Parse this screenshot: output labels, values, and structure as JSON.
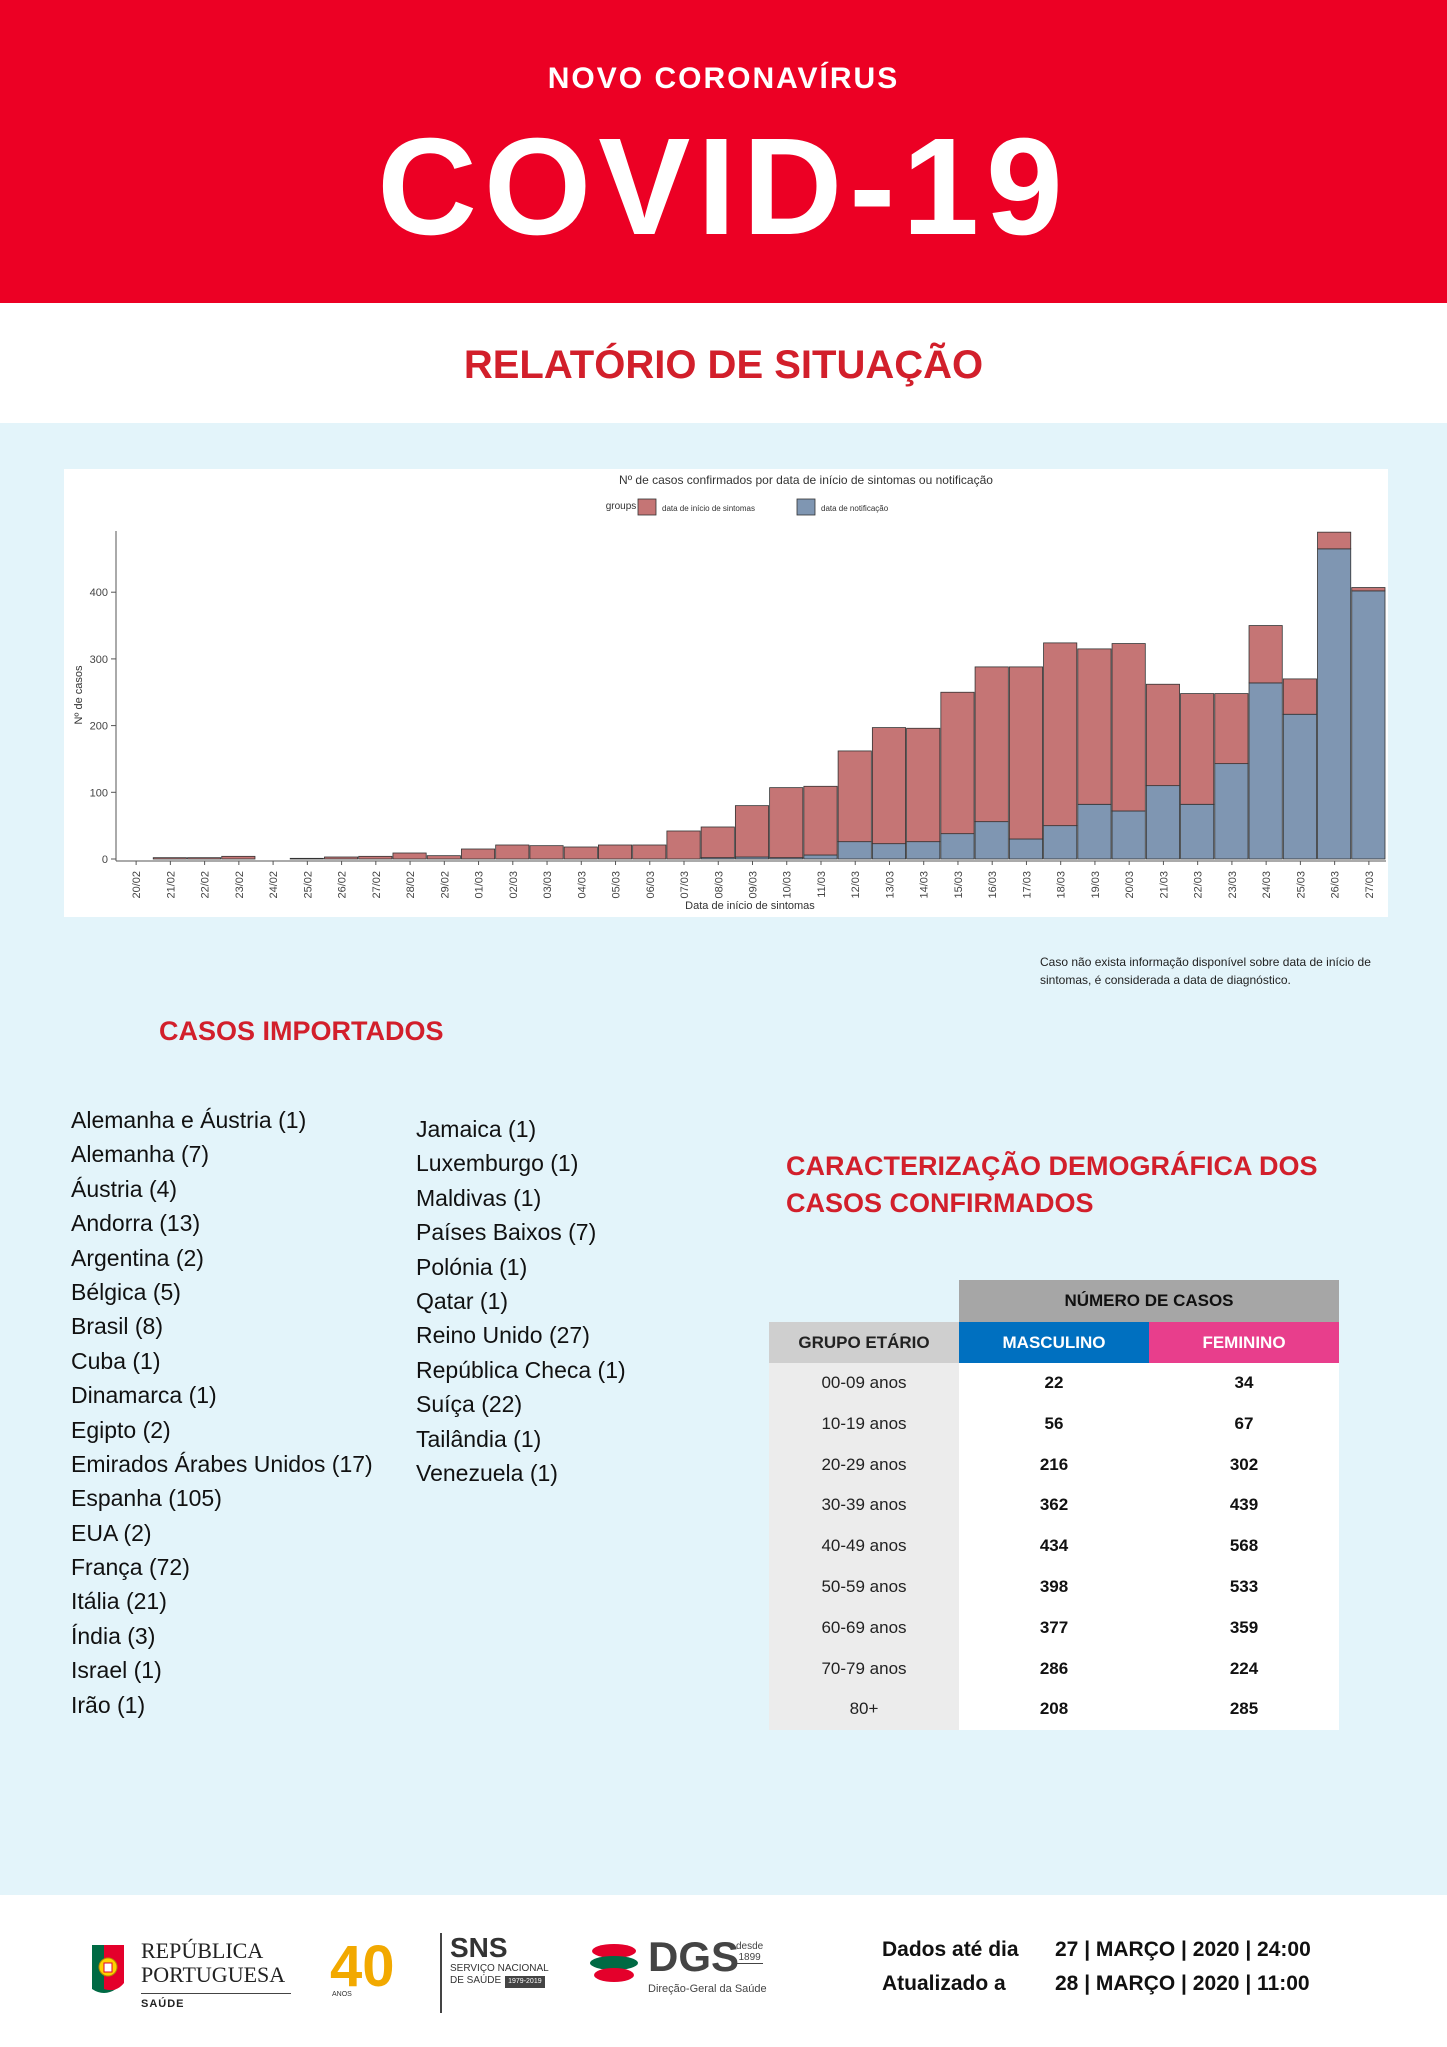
{
  "header": {
    "subtitle": "NOVO CORONAVÍRUS",
    "title": "COVID-19"
  },
  "report_title": "RELATÓRIO DE SITUAÇÃO",
  "chart_data": {
    "type": "bar",
    "stacked": true,
    "title": "Nº de casos confirmados por data de início de sintomas ou notificação",
    "legend_title": "groups",
    "xlabel": "Data de início de sintomas",
    "ylabel": "Nº de casos",
    "ylim": [
      0,
      490
    ],
    "yticks": [
      0,
      100,
      200,
      300,
      400
    ],
    "categories": [
      "20/02",
      "21/02",
      "22/02",
      "23/02",
      "24/02",
      "25/02",
      "26/02",
      "27/02",
      "28/02",
      "29/02",
      "01/03",
      "02/03",
      "03/03",
      "04/03",
      "05/03",
      "06/03",
      "07/03",
      "08/03",
      "09/03",
      "10/03",
      "11/03",
      "12/03",
      "13/03",
      "14/03",
      "15/03",
      "16/03",
      "17/03",
      "18/03",
      "19/03",
      "20/03",
      "21/03",
      "22/03",
      "23/03",
      "24/03",
      "25/03",
      "26/03",
      "27/03"
    ],
    "series": [
      {
        "name": "data de notificação",
        "color": "#7f96b2",
        "values": [
          0,
          0,
          0,
          0,
          0,
          0,
          0,
          0,
          0,
          0,
          0,
          0,
          0,
          0,
          0,
          0,
          0,
          2,
          3,
          2,
          6,
          26,
          23,
          26,
          38,
          56,
          30,
          50,
          82,
          72,
          110,
          82,
          143,
          264,
          217,
          465,
          402
        ]
      },
      {
        "name": "data de início de sintomas",
        "color": "#c57575",
        "values": [
          0,
          2,
          2,
          4,
          0,
          1,
          3,
          4,
          9,
          5,
          15,
          21,
          20,
          18,
          21,
          21,
          42,
          46,
          77,
          105,
          103,
          136,
          174,
          170,
          212,
          232,
          258,
          274,
          233,
          251,
          152,
          166,
          105,
          86,
          53,
          25,
          5
        ]
      }
    ]
  },
  "note": "Caso não exista informação disponível sobre data de início de sintomas, é considerada a data de diagnóstico.",
  "imported": {
    "title": "CASOS IMPORTADOS",
    "col1": [
      "Alemanha e Áustria (1)",
      "Alemanha (7)",
      "Áustria (4)",
      "Andorra (13)",
      "Argentina (2)",
      "Bélgica (5)",
      "Brasil (8)",
      "Cuba (1)",
      "Dinamarca (1)",
      "Egipto (2)",
      "Emirados Árabes Unidos (17)",
      "Espanha (105)",
      "EUA (2)",
      "França (72)",
      "Itália (21)",
      "Índia (3)",
      "Israel (1)",
      "Irão (1)"
    ],
    "col2": [
      "Jamaica (1)",
      "Luxemburgo (1)",
      "Maldivas (1)",
      "Países Baixos (7)",
      "Polónia (1)",
      "Qatar (1)",
      "Reino Unido (27)",
      "República Checa (1)",
      "Suíça (22)",
      "Tailândia (1)",
      "Venezuela (1)"
    ]
  },
  "demographics": {
    "title": "CARACTERIZAÇÃO DEMOGRÁFICA DOS CASOS CONFIRMADOS",
    "top_header": "NÚMERO DE CASOS",
    "col_headers": [
      "GRUPO ETÁRIO",
      "MASCULINO",
      "FEMININO"
    ],
    "rows": [
      {
        "group": "00-09 anos",
        "male": "22",
        "female": "34"
      },
      {
        "group": "10-19 anos",
        "male": "56",
        "female": "67"
      },
      {
        "group": "20-29 anos",
        "male": "216",
        "female": "302"
      },
      {
        "group": "30-39 anos",
        "male": "362",
        "female": "439"
      },
      {
        "group": "40-49 anos",
        "male": "434",
        "female": "568"
      },
      {
        "group": "50-59 anos",
        "male": "398",
        "female": "533"
      },
      {
        "group": "60-69 anos",
        "male": "377",
        "female": "359"
      },
      {
        "group": "70-79 anos",
        "male": "286",
        "female": "224"
      },
      {
        "group": "80+",
        "male": "208",
        "female": "285"
      }
    ]
  },
  "footer": {
    "republica": [
      "REPÚBLICA",
      "PORTUGUESA"
    ],
    "saude": "SAÚDE",
    "anos40": "40",
    "anos_label": "ANOS",
    "sns": "SNS",
    "sns_sub": [
      "SERVIÇO NACIONAL",
      "DE SAÚDE"
    ],
    "sns_years": "1979-2019",
    "dgs": "DGS",
    "dgs_since": [
      "desde",
      "1899"
    ],
    "dgs_sub": "Direção-Geral da Saúde",
    "data_label": "Dados até dia",
    "data_value": "27 | MARÇO | 2020 | 24:00",
    "updated_label": "Atualizado a",
    "updated_value": "28 | MARÇO | 2020 | 11:00"
  },
  "colors": {
    "red": "#ec0024",
    "title_red": "#d21f2b",
    "male": "#0070c0",
    "female": "#e83e8c"
  }
}
